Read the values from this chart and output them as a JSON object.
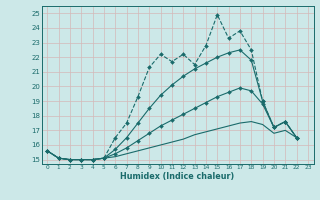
{
  "xlabel": "Humidex (Indice chaleur)",
  "bg_color": "#cce8e8",
  "grid_color": "#c8dada",
  "line_color": "#1a6b6b",
  "xlim": [
    -0.5,
    23.5
  ],
  "ylim": [
    14.7,
    25.5
  ],
  "yticks": [
    15,
    16,
    17,
    18,
    19,
    20,
    21,
    22,
    23,
    24,
    25
  ],
  "xticks": [
    0,
    1,
    2,
    3,
    4,
    5,
    6,
    7,
    8,
    9,
    10,
    11,
    12,
    13,
    14,
    15,
    16,
    17,
    18,
    19,
    20,
    21,
    22,
    23
  ],
  "line1_x": [
    0,
    1,
    2,
    3,
    4,
    5,
    6,
    7,
    8,
    9,
    10,
    11,
    12,
    13,
    14,
    15,
    16,
    17,
    18,
    19,
    20,
    21,
    22
  ],
  "line1_y": [
    15.6,
    15.1,
    15.0,
    15.0,
    15.0,
    15.1,
    16.5,
    17.5,
    19.3,
    21.3,
    22.2,
    21.7,
    22.2,
    21.5,
    22.8,
    24.9,
    23.3,
    23.8,
    22.5,
    19.0,
    17.2,
    17.6,
    16.5
  ],
  "line2_x": [
    0,
    1,
    2,
    3,
    4,
    5,
    6,
    7,
    8,
    9,
    10,
    11,
    12,
    13,
    14,
    15,
    16,
    17,
    18,
    19,
    20,
    21,
    22
  ],
  "line2_y": [
    15.6,
    15.1,
    15.0,
    15.0,
    15.0,
    15.1,
    15.7,
    16.5,
    17.5,
    18.5,
    19.4,
    20.1,
    20.7,
    21.2,
    21.6,
    22.0,
    22.3,
    22.5,
    21.8,
    19.0,
    17.2,
    17.6,
    16.5
  ],
  "line3_x": [
    0,
    1,
    2,
    3,
    4,
    5,
    6,
    7,
    8,
    9,
    10,
    11,
    12,
    13,
    14,
    15,
    16,
    17,
    18,
    19,
    20,
    21,
    22
  ],
  "line3_y": [
    15.6,
    15.1,
    15.0,
    15.0,
    15.0,
    15.1,
    15.4,
    15.8,
    16.3,
    16.8,
    17.3,
    17.7,
    18.1,
    18.5,
    18.9,
    19.3,
    19.6,
    19.9,
    19.7,
    18.8,
    17.2,
    17.6,
    16.5
  ],
  "line4_x": [
    0,
    1,
    2,
    3,
    4,
    5,
    6,
    7,
    8,
    9,
    10,
    11,
    12,
    13,
    14,
    15,
    16,
    17,
    18,
    19,
    20,
    21,
    22
  ],
  "line4_y": [
    15.6,
    15.1,
    15.0,
    15.0,
    15.0,
    15.1,
    15.2,
    15.4,
    15.6,
    15.8,
    16.0,
    16.2,
    16.4,
    16.7,
    16.9,
    17.1,
    17.3,
    17.5,
    17.6,
    17.4,
    16.8,
    17.0,
    16.5
  ]
}
